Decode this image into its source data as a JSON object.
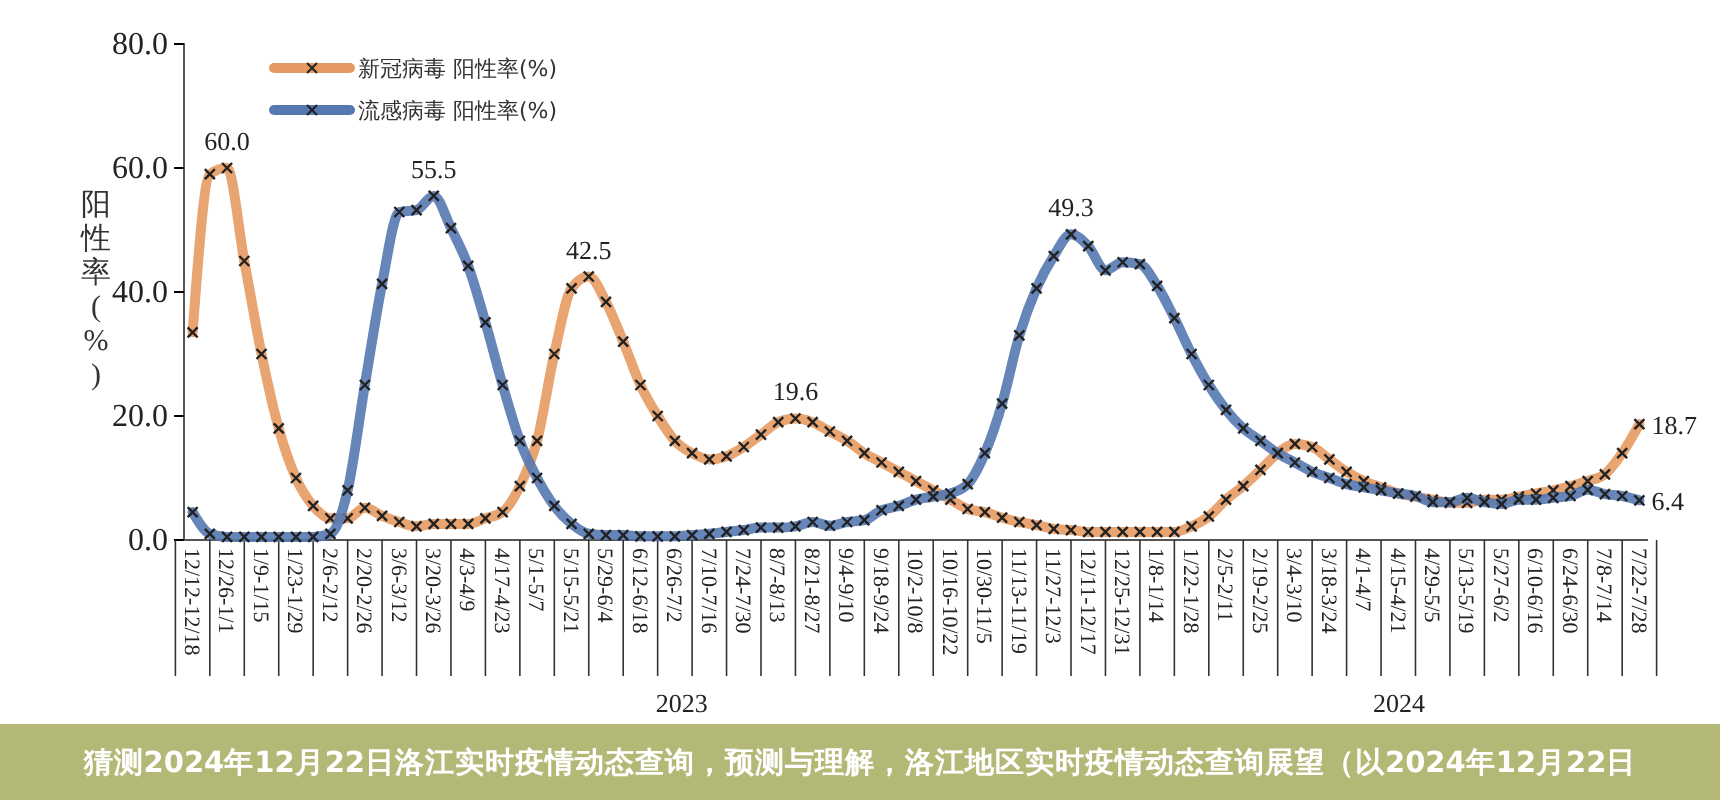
{
  "chart_data": {
    "type": "line",
    "title": "猜测2024年12月22日洛江实时疫情动态查询，预测与理解，洛江地区实时疫情动态查询展望（以2024年12月22日",
    "ylabel": "阳性率(%)",
    "categories": [
      "12/12-12/18",
      null,
      "12/26-1/1",
      null,
      "1/9-1/15",
      null,
      "1/23-1/29",
      null,
      "2/6-2/12",
      null,
      "2/20-2/26",
      null,
      "3/6-3/12",
      null,
      "3/20-3/26",
      null,
      "4/3-4/9",
      null,
      "4/17-4/23",
      null,
      "5/1-5/7",
      null,
      "5/15-5/21",
      null,
      "5/29-6/4",
      null,
      "6/12-6/18",
      null,
      "6/26-7/2",
      null,
      "7/10-7/16",
      null,
      "7/24-7/30",
      null,
      "8/7-8/13",
      null,
      "8/21-8/27",
      null,
      "9/4-9/10",
      null,
      "9/18-9/24",
      null,
      "10/2-10/8",
      null,
      "10/16-10/22",
      null,
      "10/30-11/5",
      null,
      "11/13-11/19",
      null,
      "11/27-12/3",
      null,
      "12/11-12/17",
      null,
      "12/25-12/31",
      null,
      "1/8-1/14",
      null,
      "1/22-1/28",
      null,
      "2/5-2/11",
      null,
      "2/19-2/25",
      null,
      "3/4-3/10",
      null,
      "3/18-3/24",
      null,
      "4/1-4/7",
      null,
      "4/15-4/21",
      null,
      "4/29-5/5",
      null,
      "5/13-5/19",
      null,
      "5/27-6/2",
      null,
      "6/10-6/16",
      null,
      "6/24-6/30",
      null,
      "7/8-7/14",
      null,
      "7/22-7/28"
    ],
    "series": [
      {
        "name": "新冠病毒 阳性率(%)",
        "color": "#e59a62",
        "values": [
          33.5,
          59,
          60,
          45,
          30,
          18,
          10,
          5.5,
          3.5,
          3.5,
          5.2,
          3.9,
          2.9,
          2.2,
          2.6,
          2.6,
          2.6,
          3.5,
          4.5,
          8.7,
          16,
          30,
          40.6,
          42.5,
          38.4,
          32,
          25,
          20,
          16,
          14,
          13,
          13.5,
          15,
          17,
          19,
          19.6,
          19,
          17.5,
          16,
          14,
          12.5,
          11,
          9.5,
          8,
          6.5,
          5,
          4.5,
          3.6,
          2.9,
          2.4,
          1.8,
          1.6,
          1.3,
          1.3,
          1.3,
          1.3,
          1.3,
          1.3,
          2.2,
          3.8,
          6.5,
          8.7,
          11.3,
          14,
          15.5,
          15,
          13,
          11,
          9.5,
          8.5,
          7.5,
          7,
          6.5,
          6,
          6,
          6.5,
          6.5,
          7,
          7.5,
          8,
          8.7,
          9.5,
          10.6,
          14,
          18.7
        ],
        "value_labels": [
          null,
          null,
          "60.0",
          null,
          null,
          null,
          null,
          null,
          null,
          null,
          null,
          null,
          null,
          null,
          null,
          null,
          null,
          null,
          null,
          null,
          null,
          null,
          null,
          "42.5",
          null,
          null,
          null,
          null,
          null,
          null,
          null,
          null,
          null,
          null,
          null,
          "19.6",
          null,
          null,
          null,
          null,
          null,
          null,
          null,
          null,
          null,
          null,
          null,
          null,
          null,
          null,
          null,
          null,
          null,
          null,
          null,
          null,
          null,
          null,
          null,
          null,
          null,
          null,
          null,
          null,
          null,
          null,
          null,
          null,
          null,
          null,
          null,
          null,
          null,
          null,
          null,
          null,
          null,
          null,
          null,
          null,
          null,
          null,
          null,
          null,
          "18.7"
        ]
      },
      {
        "name": "流感病毒 阳性率(%)",
        "color": "#5578b0",
        "values": [
          4.5,
          1,
          0.5,
          0.5,
          0.5,
          0.5,
          0.5,
          0.5,
          1,
          8,
          25,
          41.3,
          52.9,
          53.2,
          55.5,
          50.3,
          44.2,
          35.1,
          25,
          16,
          10,
          5.5,
          2.6,
          1,
          0.8,
          0.8,
          0.6,
          0.6,
          0.6,
          0.8,
          1,
          1.3,
          1.6,
          2,
          2,
          2.2,
          2.9,
          2.3,
          2.9,
          3.2,
          4.8,
          5.5,
          6.5,
          7,
          7.5,
          9,
          14,
          22,
          33,
          40.6,
          45.8,
          49.3,
          47.4,
          43.5,
          44.8,
          44.5,
          41,
          35.8,
          30,
          25,
          21,
          18,
          16,
          14,
          12.5,
          11,
          10,
          9,
          8.5,
          8,
          7.5,
          7.1,
          6.1,
          6.1,
          6.8,
          6.1,
          5.8,
          6.5,
          6.5,
          6.8,
          7.1,
          8.1,
          7.4,
          7.1,
          6.4
        ],
        "value_labels": [
          null,
          null,
          null,
          null,
          null,
          null,
          null,
          null,
          null,
          null,
          null,
          null,
          null,
          null,
          "55.5",
          null,
          null,
          null,
          null,
          null,
          null,
          null,
          null,
          null,
          null,
          null,
          null,
          null,
          null,
          null,
          null,
          null,
          null,
          null,
          null,
          null,
          null,
          null,
          null,
          null,
          null,
          null,
          null,
          null,
          null,
          null,
          null,
          null,
          null,
          null,
          null,
          "49.3",
          null,
          null,
          null,
          null,
          null,
          null,
          null,
          null,
          null,
          null,
          null,
          null,
          null,
          null,
          null,
          null,
          null,
          null,
          null,
          null,
          null,
          null,
          null,
          null,
          null,
          null,
          null,
          null,
          null,
          null,
          null,
          null,
          "6.4"
        ]
      }
    ],
    "ylim": [
      0,
      80
    ],
    "yticks": [
      {
        "value": 0,
        "label": "0.0"
      },
      {
        "value": 20,
        "label": "20.0"
      },
      {
        "value": 40,
        "label": "40.0"
      },
      {
        "value": 60,
        "label": "60.0"
      },
      {
        "value": 80,
        "label": "80.0"
      }
    ],
    "grid": false,
    "legend": "top left",
    "marker": "cross",
    "line_style": "solid",
    "annotations": [
      "2023",
      "2024"
    ]
  }
}
